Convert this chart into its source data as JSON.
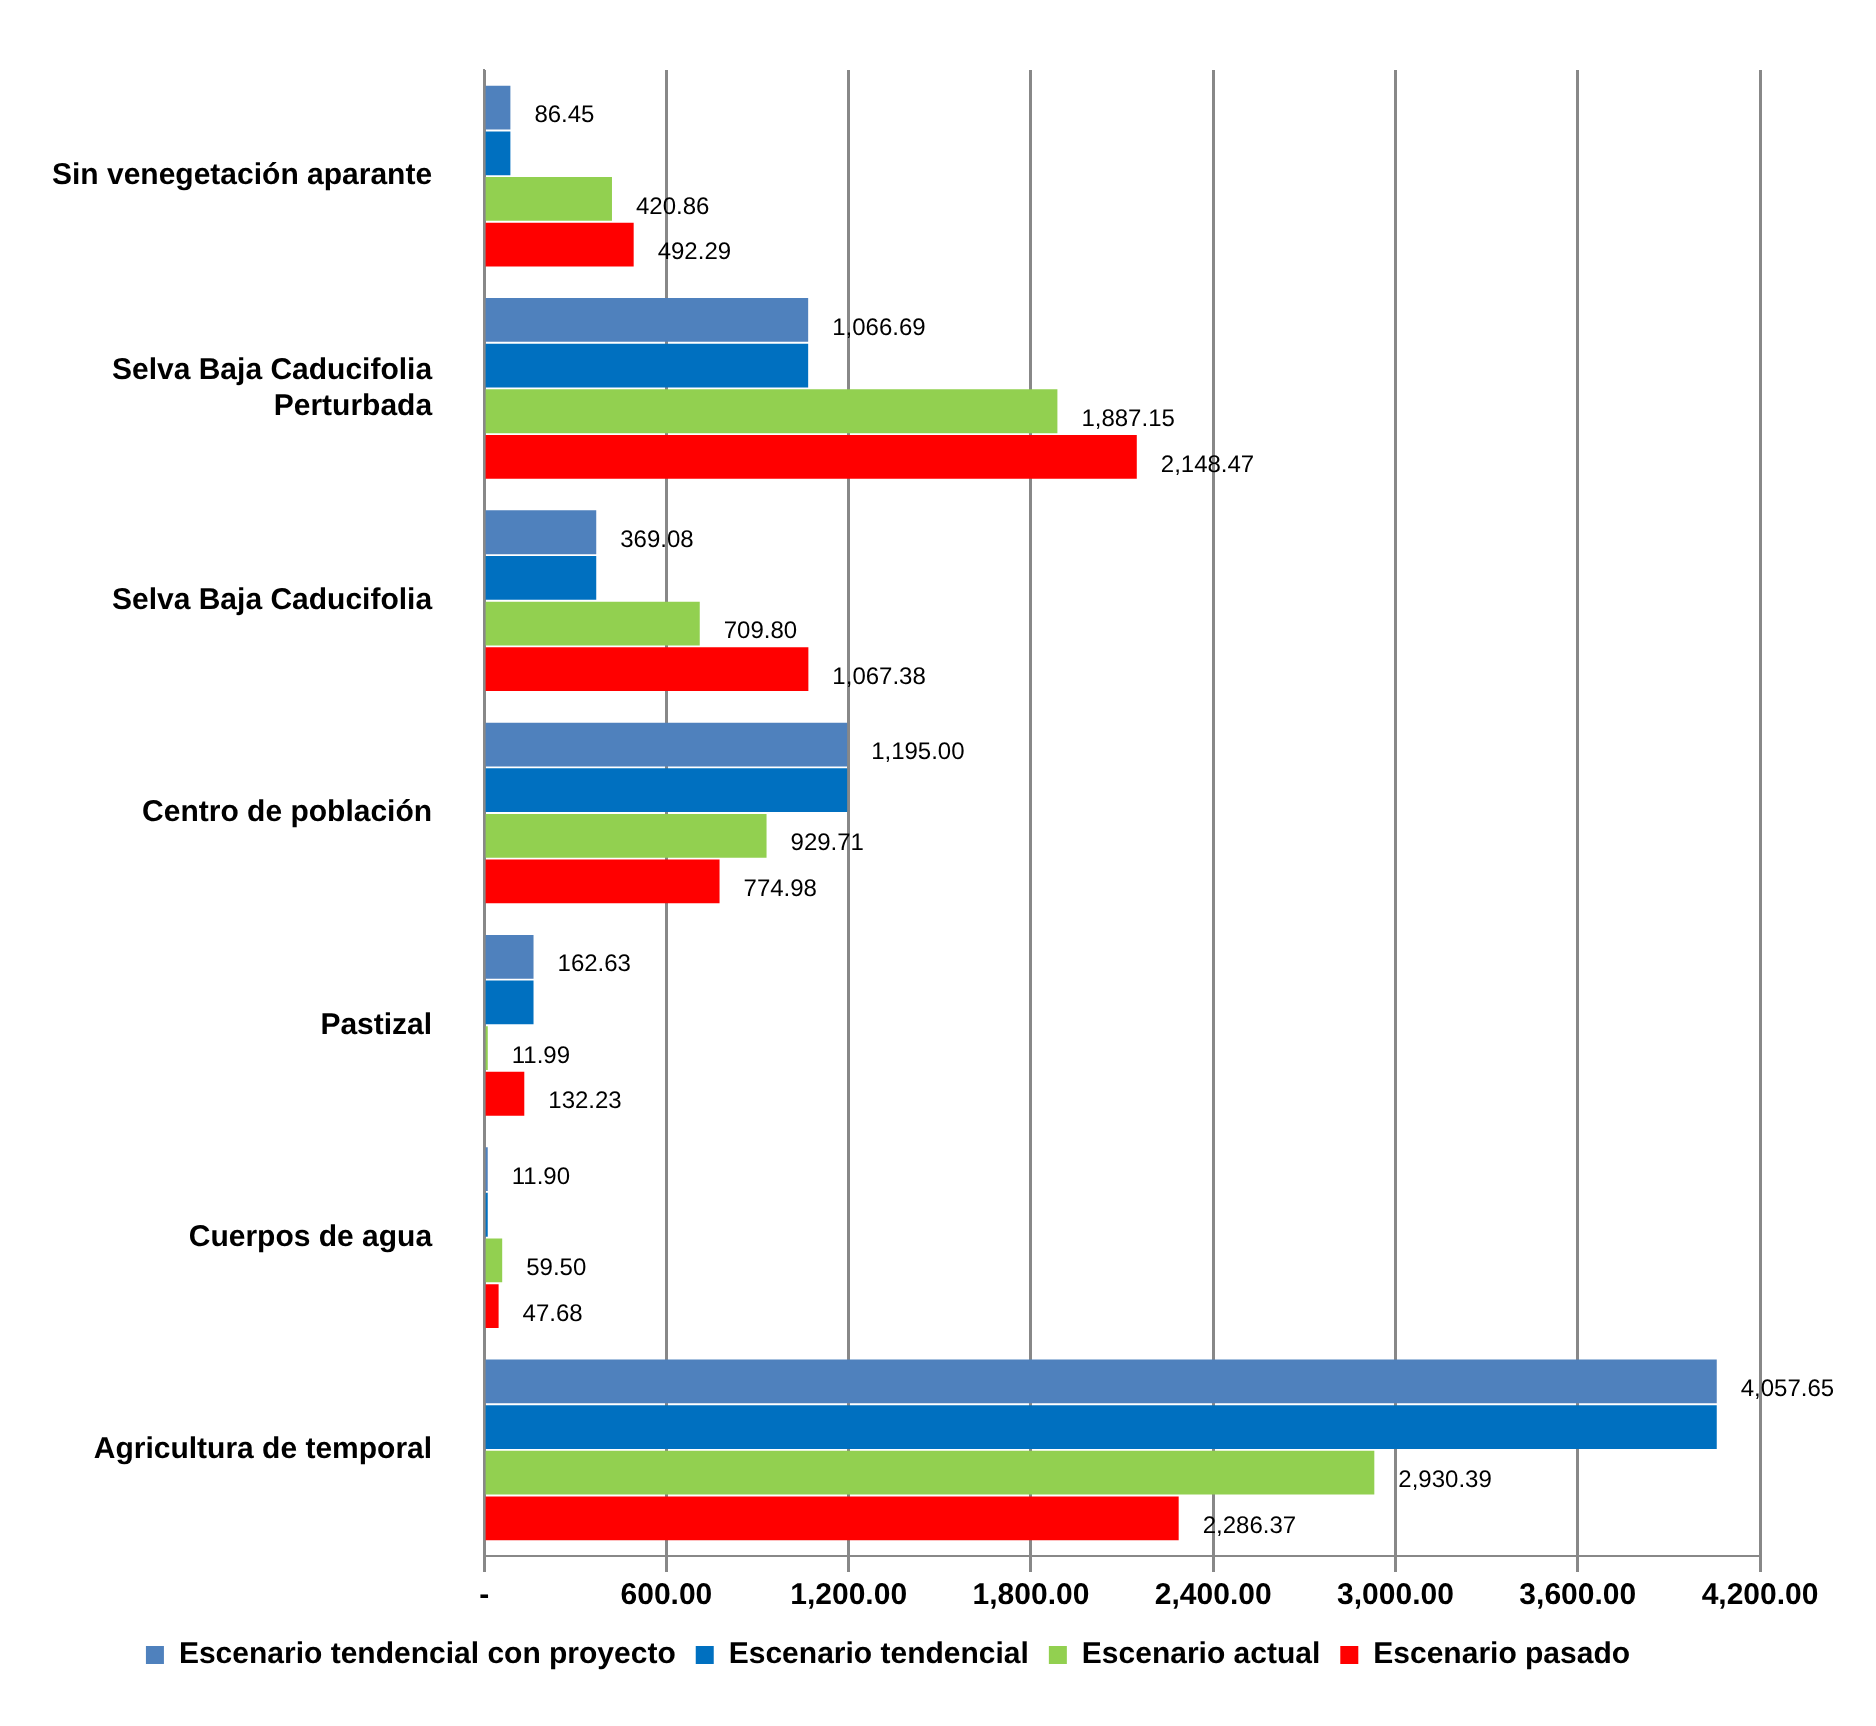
{
  "chart_data": {
    "type": "bar",
    "orientation": "horizontal",
    "categories": [
      "Sin venegetación aparante",
      "Selva Baja Caducifolia Perturbada",
      "Selva Baja Caducifolia",
      "Centro de población",
      "Pastizal",
      "Cuerpos de agua",
      "Agricultura de temporal"
    ],
    "series": [
      {
        "name": "Escenario tendencial con proyecto",
        "color": "#4f81bd",
        "values": [
          86.45,
          1066.69,
          369.08,
          1195.0,
          162.63,
          11.9,
          4057.65
        ],
        "value_labels": [
          "86.45",
          "1,066.69",
          "369.08",
          "1,195.00",
          "162.63",
          "11.90",
          "4,057.65"
        ]
      },
      {
        "name": "Escenario tendencial",
        "color": "#0070c0",
        "values": [
          86.45,
          1066.69,
          369.08,
          1195.0,
          162.63,
          11.9,
          4057.65
        ],
        "value_labels": [
          null,
          null,
          null,
          null,
          null,
          null,
          null
        ]
      },
      {
        "name": "Escenario actual",
        "color": "#92d050",
        "values": [
          420.86,
          1887.15,
          709.8,
          929.71,
          11.99,
          59.5,
          2930.39
        ],
        "value_labels": [
          "420.86",
          "1,887.15",
          "709.80",
          "929.71",
          "11.99",
          "59.50",
          "2,930.39"
        ]
      },
      {
        "name": "Escenario pasado",
        "color": "#ff0000",
        "values": [
          492.29,
          2148.47,
          1067.38,
          774.98,
          132.23,
          47.68,
          2286.37
        ],
        "value_labels": [
          "492.29",
          "2,148.47",
          "1,067.38",
          "774.98",
          "132.23",
          "47.68",
          "2,286.37"
        ]
      }
    ],
    "xlim": [
      0,
      4200
    ],
    "xticks": [
      {
        "value": 0,
        "label": "-"
      },
      {
        "value": 600,
        "label": "600.00"
      },
      {
        "value": 1200,
        "label": "1,200.00"
      },
      {
        "value": 1800,
        "label": "1,800.00"
      },
      {
        "value": 2400,
        "label": "2,400.00"
      },
      {
        "value": 3000,
        "label": "3,000.00"
      },
      {
        "value": 3600,
        "label": "3,600.00"
      },
      {
        "value": 4200,
        "label": "4,200.00"
      }
    ],
    "grid": "x",
    "legend": "bottom"
  }
}
